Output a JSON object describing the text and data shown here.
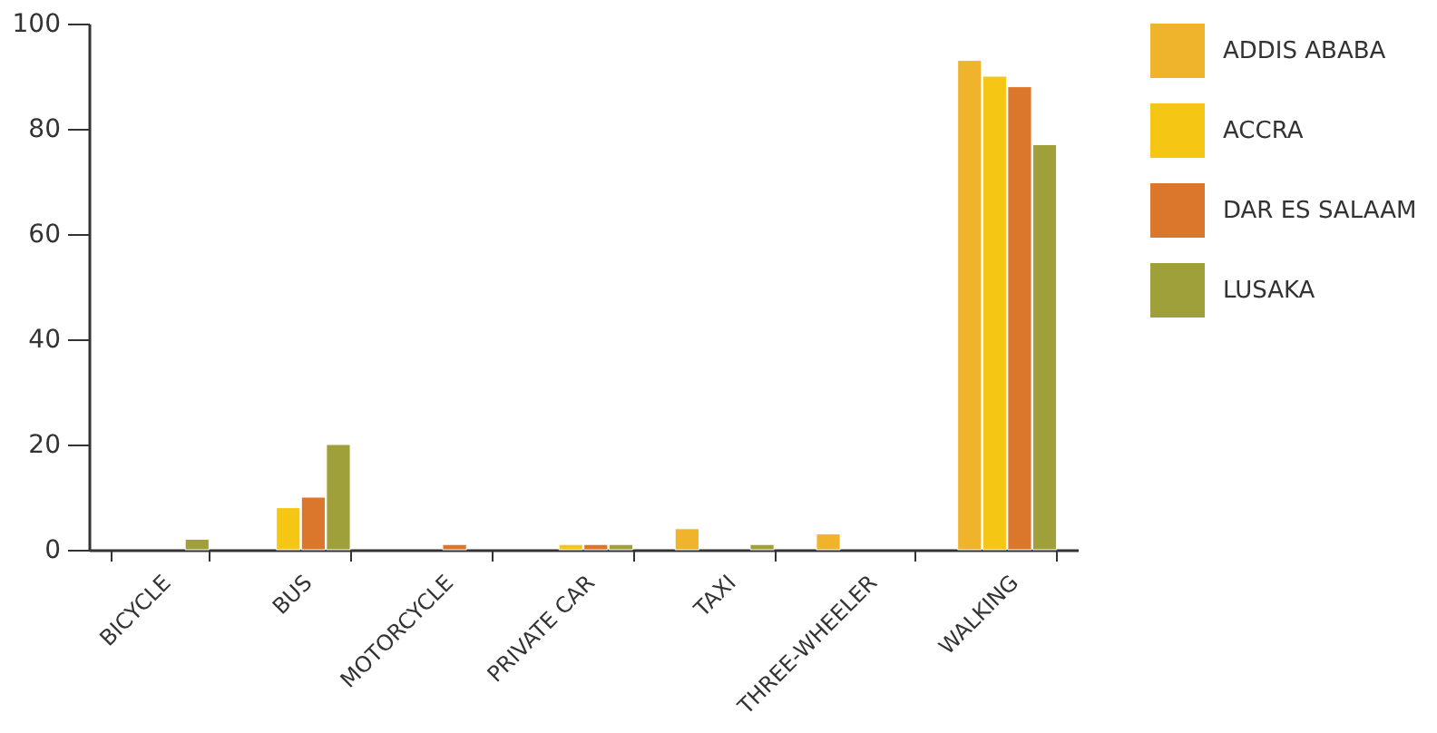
{
  "chart_data": {
    "type": "bar",
    "categories": [
      "BICYCLE",
      "BUS",
      "MOTORCYCLE",
      "PRIVATE CAR",
      "TAXI",
      "THREE-WHEELER",
      "WALKING"
    ],
    "series": [
      {
        "name": "ADDIS ABABA",
        "color": "#efb42c",
        "values": [
          null,
          null,
          null,
          null,
          4,
          3,
          93
        ]
      },
      {
        "name": "ACCRA",
        "color": "#f5c714",
        "values": [
          null,
          8,
          null,
          1,
          null,
          null,
          90
        ]
      },
      {
        "name": "DAR ES SALAAM",
        "color": "#db772c",
        "values": [
          null,
          10,
          1,
          1,
          null,
          null,
          88
        ]
      },
      {
        "name": "LUSAKA",
        "color": "#a0a03a",
        "values": [
          2,
          20,
          null,
          1,
          1,
          null,
          77
        ]
      }
    ],
    "ylim": [
      0,
      100
    ],
    "yticks": [
      0,
      20,
      40,
      60,
      80,
      100
    ],
    "grid": false,
    "legend": "top right"
  }
}
